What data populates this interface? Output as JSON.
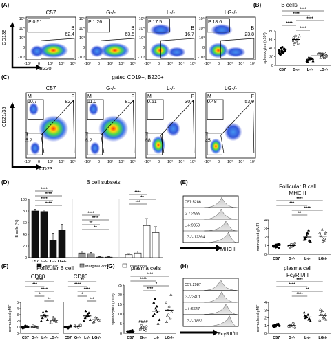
{
  "panelA": {
    "label": "(A)",
    "plots": [
      {
        "title": "C57",
        "gate_p": "P 0.51",
        "gate_b": "62.4"
      },
      {
        "title": "G-/-",
        "gate_p": "P 1.26",
        "gate_b": "63.5"
      },
      {
        "title": "L-/-",
        "gate_p": "P 17.5",
        "gate_b": "16.7"
      },
      {
        "title": "LG-/-",
        "gate_p": "P 18.6",
        "gate_b": "23.8"
      }
    ],
    "gate_letter_p": "P",
    "gate_letter_b": "B",
    "y_axis": "CD138",
    "x_axis": "B220",
    "tick_labels": [
      "10⁵",
      "10⁴",
      "10³",
      "0",
      "-10³"
    ],
    "x_tick_labels": [
      "-10³",
      "0",
      "10³",
      "10⁴",
      "10⁵"
    ]
  },
  "panelB": {
    "label": "(B)",
    "title": "B cells",
    "ylabel": "splenocytes (x10⁶)",
    "yticks": [
      "0",
      "20",
      "40",
      "60",
      "80"
    ],
    "groups": [
      "C57",
      "G-/-",
      "L-/-",
      "LG-/-"
    ],
    "sig": [
      "****",
      "****",
      "****",
      "****",
      "****",
      "###"
    ]
  },
  "panelC": {
    "label": "(C)",
    "caption": "gated CD19+, B220+",
    "plots": [
      {
        "title": "C57",
        "m": "10.7",
        "f": "82.4",
        "t": "5.2"
      },
      {
        "title": "G-/-",
        "m": "11.0",
        "f": "81.4",
        "t": "6.2"
      },
      {
        "title": "L-/-",
        "m": "0.51",
        "f": "30.4",
        "t": "68"
      },
      {
        "title": "LG-/-",
        "m": "0.48",
        "f": "53.0",
        "t": "45"
      }
    ],
    "letters": {
      "m": "M",
      "f": "F",
      "t": "T"
    },
    "y_axis": "CD21/35",
    "x_axis": "CD23"
  },
  "panelD": {
    "label": "(D)",
    "title": "B cell subsets",
    "ylabel": "B cells (%)",
    "yticks": [
      "0",
      "20",
      "40",
      "60",
      "80",
      "100"
    ],
    "groups": [
      "C57",
      "G-/-",
      "L-/-",
      "LG-/-"
    ],
    "legend": [
      "Follicular",
      "Marginal Zone",
      "Transitional"
    ],
    "sig1": [
      "****",
      "****",
      "****",
      "****"
    ],
    "sig2": [
      "****",
      "****",
      "**",
      "**"
    ],
    "sig3": [
      "****",
      "**",
      "***"
    ]
  },
  "panelE": {
    "label": "(E)",
    "title1": "Follicular B cell",
    "title2": "MHC II",
    "hist_labels": [
      "C57:5286",
      "G-/-:4989",
      "L-/-:9359",
      "LG-/-:12364"
    ],
    "hist_axis": "MHC II",
    "ylabel": "normalised gMFI",
    "yticks": [
      "0",
      "1",
      "2",
      "3",
      "4"
    ],
    "groups": [
      "C57",
      "G-/-",
      "L-/-",
      "LG-/-"
    ],
    "sig": [
      "****",
      "***",
      "****",
      "**"
    ]
  },
  "panelF": {
    "label": "(F)",
    "title": "Follicular B cell",
    "sub1": "CD80",
    "sub2": "CD86",
    "ylabel": "normalised gMFI",
    "yticks": [
      "0",
      "1",
      "2",
      "3",
      "4",
      "5"
    ],
    "groups": [
      "C57",
      "G-/-",
      "L-/-",
      "LG-/-"
    ],
    "sig_a": [
      "****",
      "***",
      "****",
      "*",
      "**"
    ],
    "sig_b": [
      "**",
      "****",
      "****",
      "*",
      "***"
    ]
  },
  "panelG": {
    "label": "(G)",
    "title": "plasma cells",
    "ylabel": "splenocytes (x10⁶)",
    "yticks": [
      "0",
      "5",
      "10",
      "15",
      "20",
      "25"
    ],
    "groups": [
      "C57",
      "G-/-",
      "L-/-",
      "LG-/-"
    ],
    "sig": [
      "****",
      "****",
      "*",
      "****"
    ],
    "hash": "####"
  },
  "panelH": {
    "label": "(H)",
    "title1": "plasma cell",
    "title2": "FcγRII/III",
    "hist_labels": [
      "C57:2987",
      "G-/-:3401",
      "L-/-:6647",
      "LG-/-:7853"
    ],
    "hist_axis": "FcγRII/III",
    "ylabel": "normalised gMFI",
    "yticks": [
      "0",
      "1",
      "2",
      "3",
      "4"
    ],
    "groups": [
      "C57",
      "G-/-",
      "L-/-",
      "LG-/-"
    ],
    "sig": [
      "****",
      "****",
      "**",
      "****"
    ]
  },
  "chart_data": [
    {
      "type": "scatter",
      "panel": "B",
      "categories": [
        "C57",
        "G-/-",
        "L-/-",
        "LG-/-"
      ],
      "values": [
        [
          35,
          30,
          38,
          27,
          42,
          33,
          25,
          29,
          36,
          40,
          31,
          28,
          34,
          37,
          26,
          32
        ],
        [
          62,
          55,
          70,
          48,
          58,
          66,
          52,
          60,
          57,
          68,
          50,
          64
        ],
        [
          12,
          15,
          10,
          18,
          14,
          11,
          13,
          16,
          9,
          17
        ],
        [
          20,
          25,
          18,
          22,
          28,
          19,
          24,
          21,
          26,
          17,
          23
        ]
      ],
      "means": [
        32,
        60,
        14,
        22
      ],
      "ylim": [
        0,
        80
      ]
    },
    {
      "type": "bar",
      "panel": "D",
      "categories": [
        "C57",
        "G-/-",
        "L-/-",
        "LG-/-"
      ],
      "series": [
        {
          "name": "Follicular",
          "values": [
            80,
            79,
            30,
            47
          ]
        },
        {
          "name": "Marginal Zone",
          "values": [
            8,
            7,
            1,
            1
          ]
        },
        {
          "name": "Transitional",
          "values": [
            5,
            8,
            55,
            43
          ]
        }
      ],
      "ylim": [
        0,
        100
      ]
    },
    {
      "type": "scatter",
      "panel": "E",
      "categories": [
        "C57",
        "G-/-",
        "L-/-",
        "LG-/-"
      ],
      "values": [
        [
          1.0,
          0.8,
          1.2,
          0.9,
          1.1,
          0.7,
          1.0,
          0.85,
          1.15,
          0.95,
          1.05,
          0.9
        ],
        [
          1.0,
          0.9,
          1.2,
          0.8,
          1.1,
          1.3,
          0.85,
          1.0,
          0.95,
          1.15,
          1.05,
          0.9
        ],
        [
          1.8,
          2.4,
          1.5,
          2.0,
          2.8,
          1.7,
          2.2,
          1.6,
          1.9,
          2.5
        ],
        [
          2.0,
          1.6,
          2.5,
          2.9,
          1.8,
          2.2,
          1.5,
          2.4,
          2.0,
          1.7,
          2.6
        ]
      ],
      "means": [
        1.0,
        1.0,
        2.0,
        2.1
      ],
      "ylim": [
        0,
        4
      ]
    },
    {
      "type": "scatter",
      "panel": "F",
      "subpanel": "CD80",
      "categories": [
        "C57",
        "G-/-",
        "L-/-",
        "LG-/-"
      ],
      "values": [
        [
          1.0,
          0.9,
          1.1,
          0.8,
          1.2,
          1.0,
          0.95,
          1.05
        ],
        [
          1.0,
          1.1,
          0.9,
          1.2,
          1.0,
          0.85,
          1.05,
          0.95
        ],
        [
          2.5,
          3.0,
          2.2,
          3.4,
          2.7,
          2.0,
          2.9,
          3.6
        ],
        [
          2.0,
          2.3,
          1.8,
          2.6,
          2.1,
          1.7,
          2.4,
          1.9
        ]
      ],
      "means": [
        1.0,
        1.0,
        2.8,
        2.1
      ],
      "ylim": [
        0,
        5
      ]
    },
    {
      "type": "scatter",
      "panel": "F",
      "subpanel": "CD86",
      "categories": [
        "C57",
        "G-/-",
        "L-/-",
        "LG-/-"
      ],
      "values": [
        [
          1.0,
          0.9,
          1.1,
          1.0,
          0.8,
          1.2,
          0.95,
          1.05
        ],
        [
          1.2,
          1.0,
          1.4,
          1.1,
          0.9,
          1.3,
          1.0,
          1.2
        ],
        [
          2.5,
          3.1,
          2.2,
          3.6,
          2.8,
          2.0,
          2.7,
          3.3
        ],
        [
          2.0,
          2.4,
          1.8,
          2.6,
          2.2,
          1.9,
          2.3,
          2.1
        ]
      ],
      "means": [
        1.0,
        1.1,
        2.8,
        2.2
      ],
      "ylim": [
        0,
        5
      ]
    },
    {
      "type": "scatter",
      "panel": "G",
      "categories": [
        "C57",
        "G-/-",
        "L-/-",
        "LG-/-"
      ],
      "values": [
        [
          1.0,
          0.5,
          1.5,
          0.8,
          1.2,
          0.6,
          1.0,
          0.9
        ],
        [
          2.5,
          3.0,
          1.5,
          4.0,
          2.0,
          3.5,
          2.8,
          2.2,
          1.8,
          3.2
        ],
        [
          10,
          14,
          7,
          18,
          11,
          9,
          13,
          5,
          16,
          12
        ],
        [
          12,
          8,
          16,
          10,
          20,
          6,
          14,
          11,
          9
        ]
      ],
      "means": [
        1.0,
        2.6,
        11.5,
        12.0
      ],
      "ylim": [
        0,
        25
      ]
    },
    {
      "type": "scatter",
      "panel": "H",
      "categories": [
        "C57",
        "G-/-",
        "L-/-",
        "LG-/-"
      ],
      "values": [
        [
          1.0,
          0.9,
          1.2,
          0.8,
          1.1,
          1.0,
          0.85,
          1.15,
          0.95,
          1.05,
          1.1,
          0.9
        ],
        [
          1.0,
          0.8,
          1.2,
          0.9,
          1.1,
          0.7,
          1.0,
          1.3,
          0.85,
          0.95
        ],
        [
          2.0,
          2.4,
          1.6,
          2.2,
          1.8,
          2.7,
          2.1,
          1.9,
          2.3
        ],
        [
          2.5,
          2.0,
          1.7,
          2.9,
          2.2,
          3.1,
          1.9,
          2.4,
          2.6,
          2.1,
          1.8
        ]
      ],
      "means": [
        1.0,
        1.0,
        2.1,
        2.3
      ],
      "ylim": [
        0,
        4
      ]
    }
  ]
}
